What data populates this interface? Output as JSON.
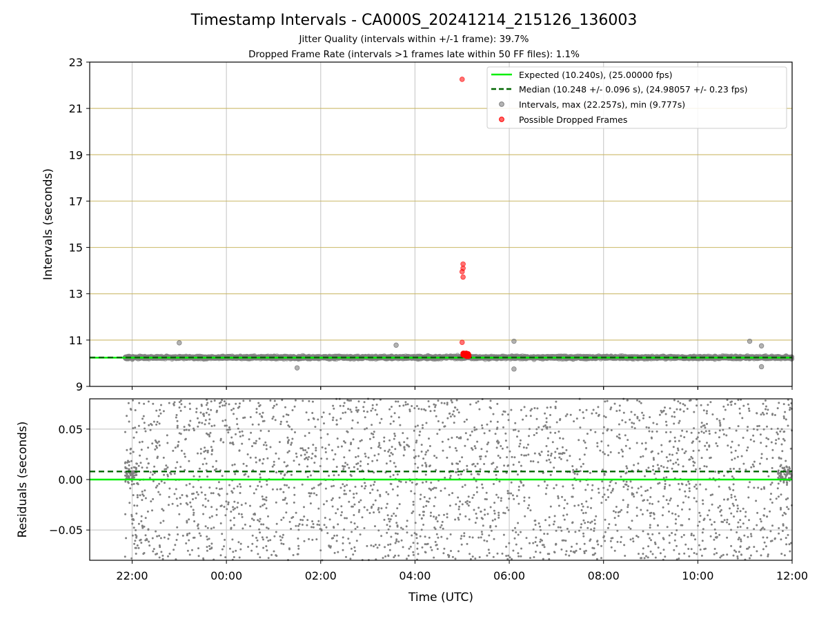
{
  "figure": {
    "title": "Timestamp Intervals - CA000S_20241214_215126_136003",
    "subtitle_1": "Jitter Quality (intervals within +/-1 frame): 39.7%",
    "subtitle_2": "Dropped Frame Rate (intervals >1 frames late within 50 FF files): 1.1%"
  },
  "colors": {
    "expected": "#00ee00",
    "median": "#006400",
    "intervals": "#808080",
    "dropped": "#ff0000",
    "hgrid_top": "#c8b560",
    "grid": "#cccccc"
  },
  "chart_data": [
    {
      "type": "scatter",
      "panel": "intervals",
      "ylabel": "Intervals (seconds)",
      "ylim": [
        9,
        23
      ],
      "yticks": [
        9,
        11,
        13,
        15,
        17,
        19,
        21,
        23
      ],
      "ytick_labels": [
        "9",
        "11",
        "13",
        "15",
        "17",
        "19",
        "21",
        "23"
      ],
      "xlim_hours": [
        -2.9,
        12.0
      ],
      "xticks_hours": [
        -2,
        0,
        2,
        4,
        6,
        8,
        10,
        12
      ],
      "expected_interval": 10.24,
      "median_interval": 10.248,
      "intervals_band": {
        "center": 10.25,
        "spread": 0.12,
        "start_hour": -2.15,
        "end_hour": 12.0
      },
      "outliers_gray": [
        [
          -1.0,
          10.88
        ],
        [
          1.5,
          9.8
        ],
        [
          3.6,
          10.78
        ],
        [
          6.1,
          10.95
        ],
        [
          6.1,
          9.75
        ],
        [
          11.1,
          10.95
        ],
        [
          11.35,
          10.75
        ],
        [
          11.35,
          9.85
        ]
      ],
      "dropped_frames": [
        [
          5.0,
          22.257
        ],
        [
          5.02,
          14.28
        ],
        [
          5.02,
          14.1
        ],
        [
          5.0,
          13.95
        ],
        [
          5.02,
          13.72
        ],
        [
          5.0,
          10.9
        ],
        [
          5.05,
          10.35
        ],
        [
          5.08,
          10.42
        ],
        [
          5.1,
          10.3
        ],
        [
          5.12,
          10.38
        ]
      ],
      "max_interval": 22.257,
      "min_interval": 9.777,
      "legend": [
        {
          "label": "Expected (10.240s), (25.00000 fps)",
          "kind": "solid-line"
        },
        {
          "label": "Median (10.248 +/- 0.096 s), (24.98057 +/- 0.23 fps)",
          "kind": "dashed-line"
        },
        {
          "label": "Intervals, max (22.257s), min (9.777s)",
          "kind": "gray-dot"
        },
        {
          "label": "Possible Dropped Frames",
          "kind": "red-dot"
        }
      ],
      "legend_position": "upper right",
      "grid": true
    },
    {
      "type": "scatter",
      "panel": "residuals",
      "ylabel": "Residuals (seconds)",
      "xlabel": "Time (UTC)",
      "ylim": [
        -0.08,
        0.08
      ],
      "yticks": [
        -0.05,
        0.0,
        0.05
      ],
      "ytick_labels": [
        "−0.05",
        "0.00",
        "0.05"
      ],
      "xlim_hours": [
        -2.9,
        12.0
      ],
      "xticks_hours": [
        -2,
        0,
        2,
        4,
        6,
        8,
        10,
        12
      ],
      "xtick_labels": [
        "22:00",
        "00:00",
        "02:00",
        "04:00",
        "06:00",
        "08:00",
        "10:00",
        "12:00"
      ],
      "expected_residual": 0.0,
      "median_residual": 0.008,
      "residual_spread": 0.08,
      "start_hour": -2.15,
      "end_hour": 12.0,
      "grid": true
    }
  ]
}
